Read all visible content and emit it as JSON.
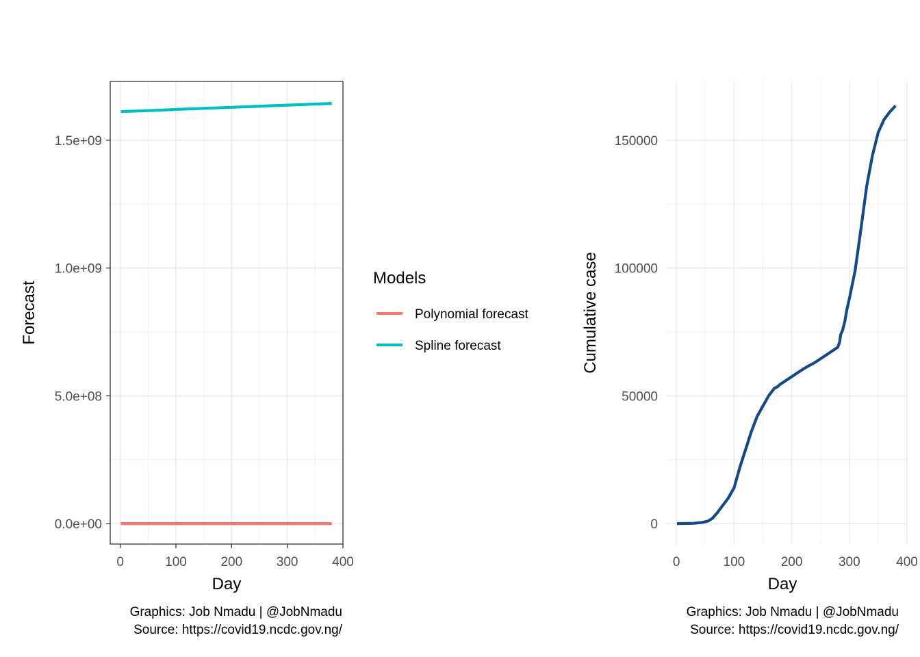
{
  "chart_data": [
    {
      "type": "line",
      "xlabel": "Day",
      "ylabel": "Forecast",
      "xlim": [
        -18,
        400
      ],
      "ylim": [
        -80000000,
        1730000000
      ],
      "xticks": [
        0,
        100,
        200,
        300,
        400
      ],
      "xtick_labels": [
        "0",
        "100",
        "200",
        "300",
        "400"
      ],
      "yticks": [
        0,
        500000000,
        1000000000,
        1500000000
      ],
      "ytick_labels": [
        "0.0e+00",
        "5.0e+08",
        "1.0e+09",
        "1.5e+09"
      ],
      "grid": true,
      "legend_title": "Models",
      "legend_position": "right",
      "series": [
        {
          "name": "Polynomial forecast",
          "color": "#f8766d",
          "x": [
            1,
            380
          ],
          "y": [
            0,
            0
          ]
        },
        {
          "name": "Spline forecast",
          "color": "#00bfc4",
          "x": [
            1,
            380
          ],
          "y": [
            1612000000,
            1644000000
          ]
        }
      ],
      "caption": [
        "Graphics: Job Nmadu | @JobNmadu",
        "Source: https://covid19.ncdc.gov.ng/"
      ]
    },
    {
      "type": "line",
      "xlabel": "Day",
      "ylabel": "Cumulative case",
      "xlim": [
        -18,
        400
      ],
      "ylim": [
        -8000,
        173000
      ],
      "xticks": [
        0,
        100,
        200,
        300,
        400
      ],
      "xtick_labels": [
        "0",
        "100",
        "200",
        "300",
        "400"
      ],
      "yticks": [
        0,
        50000,
        100000,
        150000
      ],
      "ytick_labels": [
        "0",
        "50000",
        "100000",
        "150000"
      ],
      "grid": true,
      "series": [
        {
          "color": "#154a86",
          "x": [
            1,
            30,
            45,
            55,
            62,
            70,
            80,
            90,
            100,
            110,
            120,
            130,
            140,
            150,
            160,
            170,
            175,
            180,
            190,
            200,
            210,
            220,
            230,
            240,
            250,
            260,
            270,
            280,
            283,
            285,
            288,
            292,
            296,
            300,
            310,
            320,
            330,
            340,
            350,
            360,
            370,
            380
          ],
          "y": [
            0,
            100,
            500,
            1000,
            2000,
            4000,
            7000,
            10000,
            14000,
            22000,
            29000,
            36000,
            42000,
            46000,
            50000,
            53000,
            53500,
            54500,
            56000,
            57500,
            59000,
            60500,
            61800,
            63000,
            64500,
            66000,
            67500,
            69000,
            71000,
            74000,
            75500,
            79000,
            84000,
            88000,
            99000,
            115000,
            132000,
            144000,
            153000,
            158000,
            161000,
            163500
          ]
        }
      ],
      "caption": [
        "Graphics: Job Nmadu | @JobNmadu",
        "Source: https://covid19.ncdc.gov.ng/"
      ]
    }
  ]
}
